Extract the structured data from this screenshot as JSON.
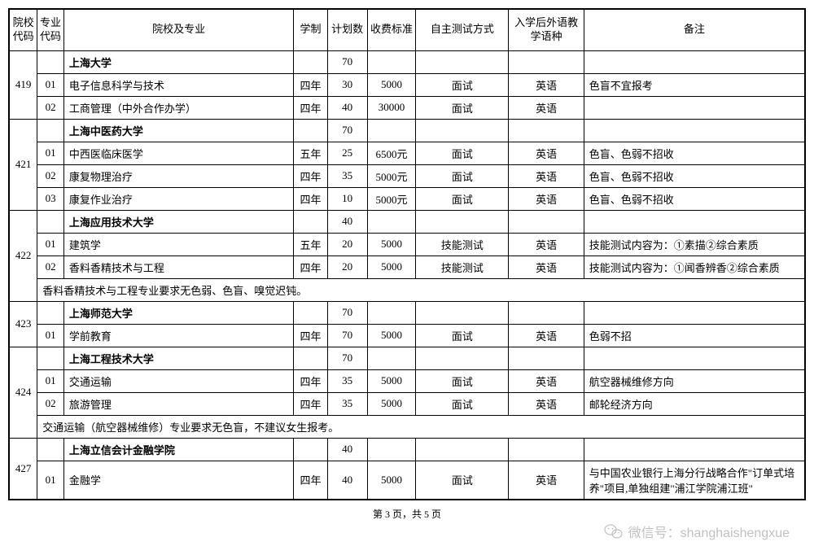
{
  "headers": {
    "school_code": "院校代码",
    "major_code": "专业代码",
    "name": "院校及专业",
    "duration": "学制",
    "plan": "计划数",
    "fee": "收费标准",
    "test": "自主测试方式",
    "lang": "入学后外语教学语种",
    "note": "备注"
  },
  "schools": [
    {
      "code": "419",
      "name": "上海大学",
      "plan": "70",
      "majors": [
        {
          "code": "01",
          "name": "电子信息科学与技术",
          "duration": "四年",
          "plan": "30",
          "fee": "5000",
          "test": "面试",
          "lang": "英语",
          "note": "色盲不宜报考"
        },
        {
          "code": "02",
          "name": "工商管理（中外合作办学）",
          "duration": "四年",
          "plan": "40",
          "fee": "30000",
          "test": "面试",
          "lang": "英语",
          "note": ""
        }
      ],
      "footnote": ""
    },
    {
      "code": "421",
      "name": "上海中医药大学",
      "plan": "70",
      "majors": [
        {
          "code": "01",
          "name": "中西医临床医学",
          "duration": "五年",
          "plan": "25",
          "fee": "6500元",
          "test": "面试",
          "lang": "英语",
          "note": "色盲、色弱不招收"
        },
        {
          "code": "02",
          "name": "康复物理治疗",
          "duration": "四年",
          "plan": "35",
          "fee": "5000元",
          "test": "面试",
          "lang": "英语",
          "note": "色盲、色弱不招收"
        },
        {
          "code": "03",
          "name": "康复作业治疗",
          "duration": "四年",
          "plan": "10",
          "fee": "5000元",
          "test": "面试",
          "lang": "英语",
          "note": "色盲、色弱不招收"
        }
      ],
      "footnote": ""
    },
    {
      "code": "422",
      "name": "上海应用技术大学",
      "plan": "40",
      "majors": [
        {
          "code": "01",
          "name": "建筑学",
          "duration": "五年",
          "plan": "20",
          "fee": "5000",
          "test": "技能测试",
          "lang": "英语",
          "note": "技能测试内容为：①素描②综合素质"
        },
        {
          "code": "02",
          "name": "香料香精技术与工程",
          "duration": "四年",
          "plan": "20",
          "fee": "5000",
          "test": "技能测试",
          "lang": "英语",
          "note": "技能测试内容为：①闻香辨香②综合素质"
        }
      ],
      "footnote": "香料香精技术与工程专业要求无色弱、色盲、嗅觉迟钝。"
    },
    {
      "code": "423",
      "name": "上海师范大学",
      "plan": "70",
      "majors": [
        {
          "code": "01",
          "name": "学前教育",
          "duration": "四年",
          "plan": "70",
          "fee": "5000",
          "test": "面试",
          "lang": "英语",
          "note": "色弱不招"
        }
      ],
      "footnote": ""
    },
    {
      "code": "424",
      "name": "上海工程技术大学",
      "plan": "70",
      "majors": [
        {
          "code": "01",
          "name": "交通运输",
          "duration": "四年",
          "plan": "35",
          "fee": "5000",
          "test": "面试",
          "lang": "英语",
          "note": "航空器械维修方向"
        },
        {
          "code": "02",
          "name": "旅游管理",
          "duration": "四年",
          "plan": "35",
          "fee": "5000",
          "test": "面试",
          "lang": "英语",
          "note": "邮轮经济方向"
        }
      ],
      "footnote": "交通运输（航空器械维修）专业要求无色盲，不建议女生报考。"
    },
    {
      "code": "427",
      "name": "上海立信会计金融学院",
      "plan": "40",
      "majors": [
        {
          "code": "01",
          "name": "金融学",
          "duration": "四年",
          "plan": "40",
          "fee": "5000",
          "test": "面试",
          "lang": "英语",
          "note": "与中国农业银行上海分行战略合作\"订单式培养\"项目,单独组建\"浦江学院浦江班\""
        }
      ],
      "footnote": ""
    }
  ],
  "footer": "第 3 页，共 5 页",
  "watermark": "微信号：shanghaishengxue"
}
